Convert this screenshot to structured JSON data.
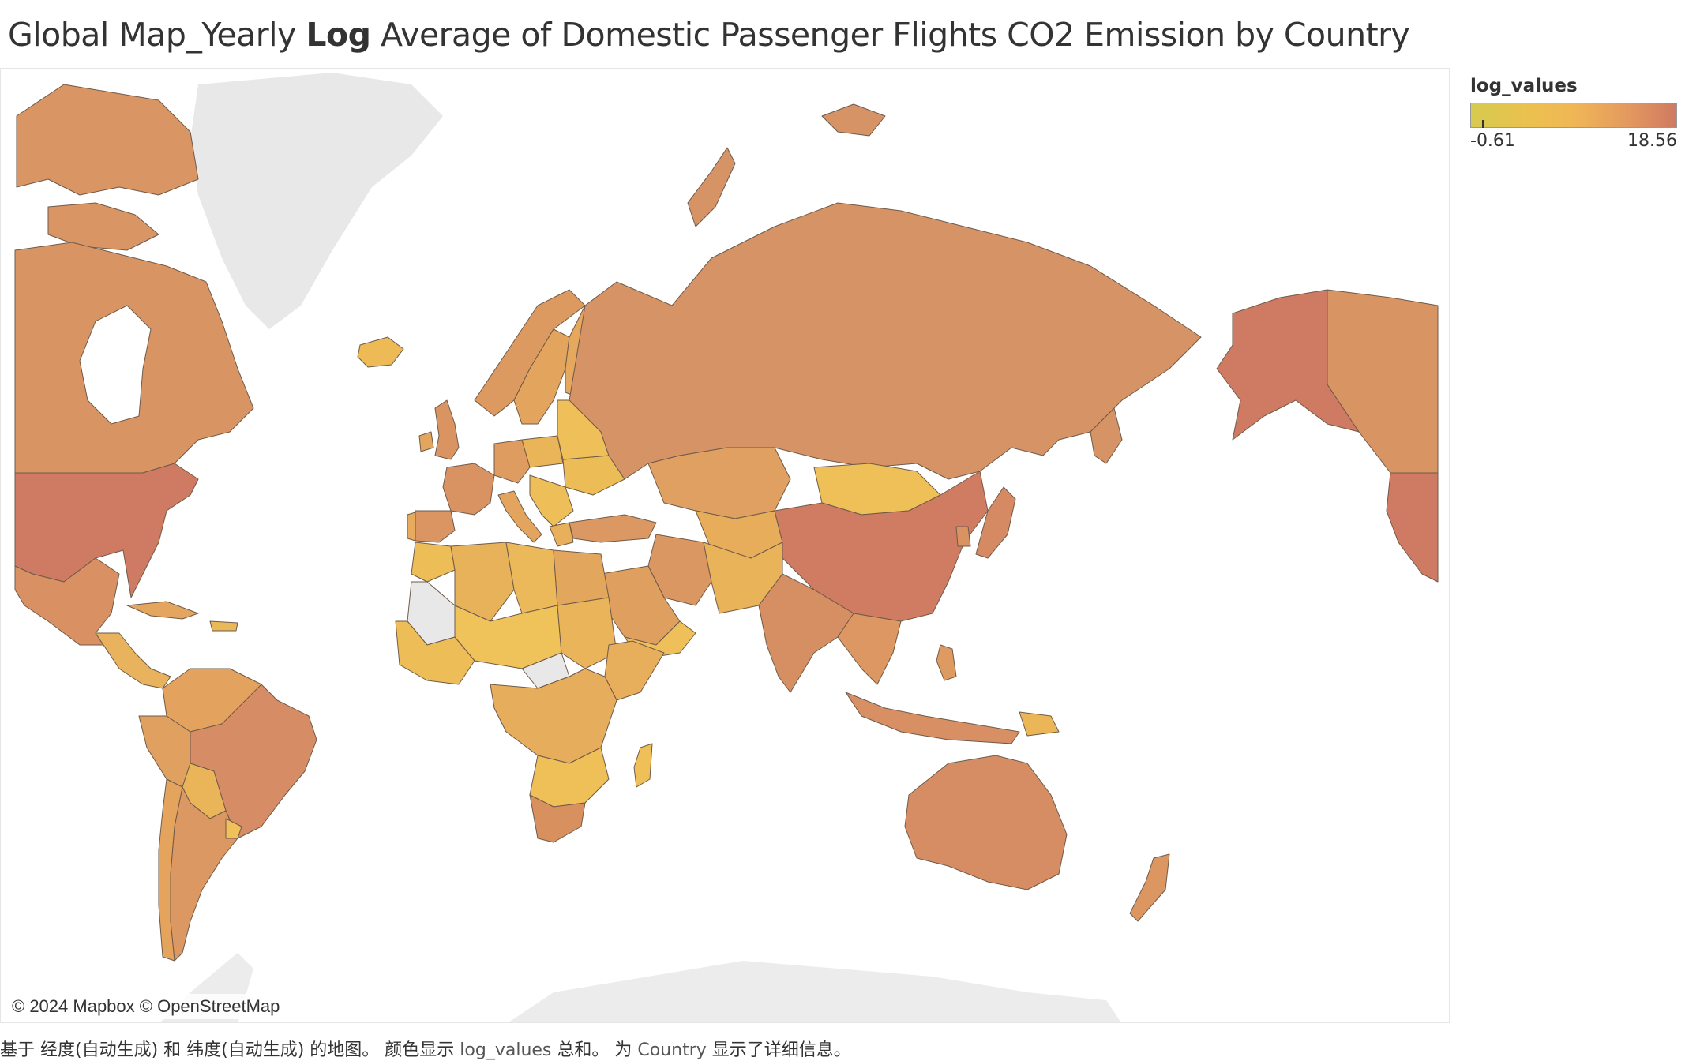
{
  "title": {
    "part1": "Global Map_Yearly ",
    "bold": "Log",
    "part2": " Average of Domestic Passenger Flights CO2 Emission by Country"
  },
  "legend": {
    "title": "log_values",
    "min_label": "-0.61",
    "max_label": "18.56",
    "colors": [
      "#d6cb4e",
      "#ecc04f",
      "#f0b656",
      "#e49b5e",
      "#cf7a62"
    ]
  },
  "attribution": "© 2024 Mapbox © OpenStreetMap",
  "caption": {
    "prefix": "基于 经度(自动生成) 和 纬度(自动生成) 的地图。 颜色显示 ",
    "field1": "log_values",
    "middle": " 总和。 为 ",
    "field2": "Country",
    "suffix": " 显示了详细信息。"
  },
  "colors": {
    "no_data": "#e8e8e8",
    "water": "#ffffff",
    "border": "#6f5a4a"
  }
}
